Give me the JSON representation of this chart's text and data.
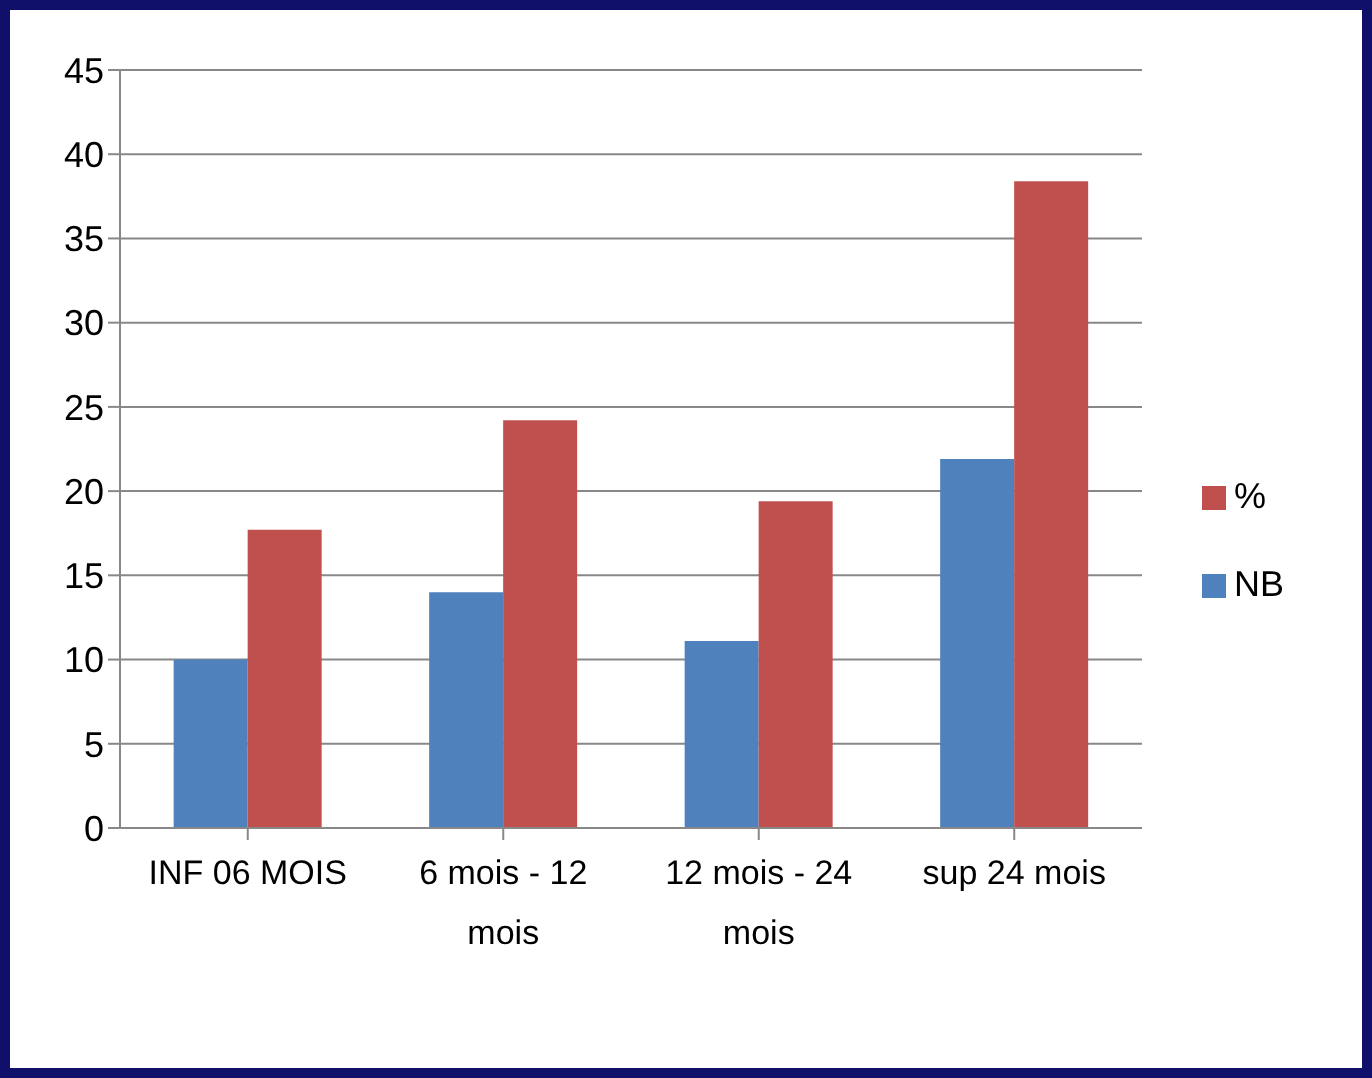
{
  "chart_data": {
    "type": "bar",
    "categories": [
      "INF  06 MOIS",
      "6 mois - 12 mois",
      "12 mois - 24 mois",
      "sup 24 mois"
    ],
    "series": [
      {
        "name": "NB",
        "color": "#4f81bd",
        "values": [
          10,
          14,
          11.1,
          21.9
        ]
      },
      {
        "name": "%",
        "color": "#c0504d",
        "values": [
          17.7,
          24.2,
          19.4,
          38.4
        ]
      }
    ],
    "ylim": [
      0,
      45
    ],
    "yticks": [
      0,
      5,
      10,
      15,
      20,
      25,
      30,
      35,
      40,
      45
    ],
    "grid": "y",
    "legend": "right"
  }
}
